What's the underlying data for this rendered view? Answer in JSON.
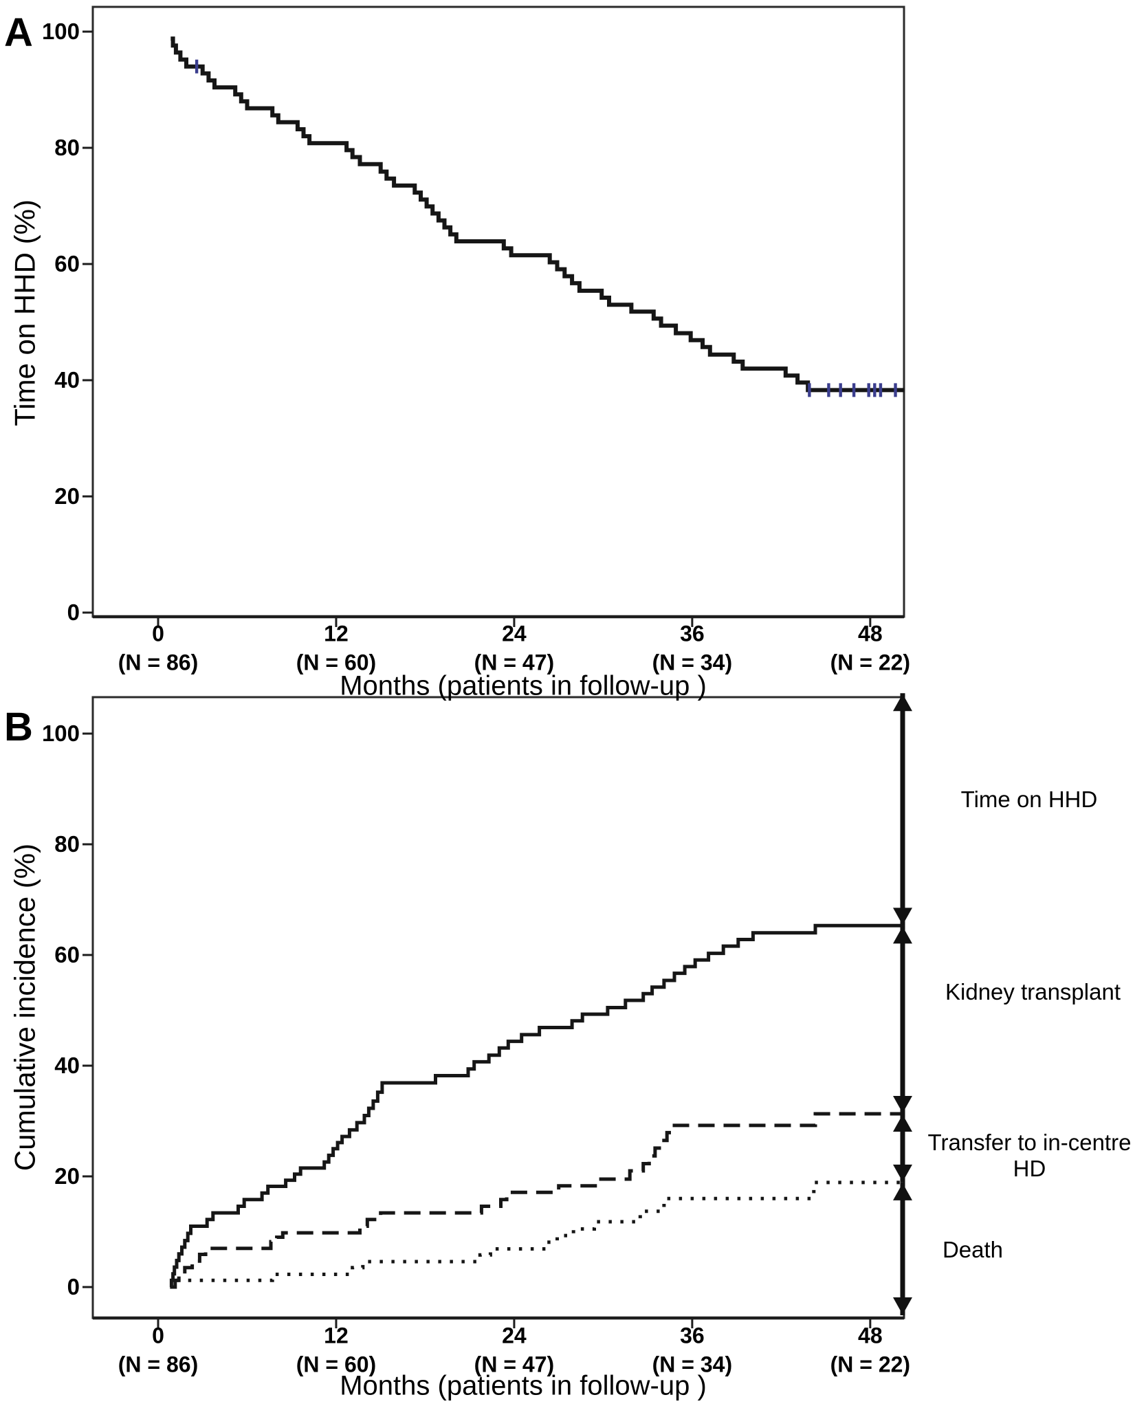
{
  "figure": {
    "background": "#ffffff",
    "line_color": "#161616",
    "frame_color": "#2b2b2b",
    "censor_color": "#3b3e8e",
    "panel_a_letter": "A",
    "panel_b_letter": "B"
  },
  "chart_data": [
    {
      "panel": "A",
      "type": "line",
      "step": true,
      "title": "",
      "xlabel": "Months (patients in follow-up )",
      "ylabel": "Time on HHD (%)",
      "xlim": [
        0,
        52
      ],
      "ylim": [
        0,
        100
      ],
      "grid": false,
      "yticks": [
        100,
        80,
        60,
        40,
        20,
        0
      ],
      "xticks": [
        {
          "month": "0",
          "n": "(N = 86)"
        },
        {
          "month": "12",
          "n": "(N = 60)"
        },
        {
          "month": "24",
          "n": "(N = 47)"
        },
        {
          "month": "36",
          "n": "(N = 34)"
        },
        {
          "month": "48",
          "n": "(N = 22)"
        }
      ],
      "series": [
        {
          "name": "Time on HHD",
          "style": "solid",
          "end_month": 50.3,
          "points": [
            [
              0.85,
              98.8
            ],
            [
              1.0,
              97.6
            ],
            [
              1.2,
              96.4
            ],
            [
              1.5,
              95.2
            ],
            [
              1.9,
              94.0
            ],
            [
              3.0,
              92.8
            ],
            [
              3.4,
              91.6
            ],
            [
              3.8,
              90.4
            ],
            [
              5.2,
              89.2
            ],
            [
              5.6,
              88.0
            ],
            [
              6.0,
              86.8
            ],
            [
              7.7,
              85.6
            ],
            [
              8.1,
              84.4
            ],
            [
              9.4,
              83.2
            ],
            [
              9.8,
              82.0
            ],
            [
              10.2,
              80.8
            ],
            [
              12.7,
              79.6
            ],
            [
              13.1,
              78.4
            ],
            [
              13.6,
              77.2
            ],
            [
              15.0,
              75.9
            ],
            [
              15.4,
              74.7
            ],
            [
              15.9,
              73.5
            ],
            [
              17.3,
              72.3
            ],
            [
              17.7,
              71.1
            ],
            [
              18.1,
              69.9
            ],
            [
              18.5,
              68.7
            ],
            [
              18.9,
              67.5
            ],
            [
              19.3,
              66.3
            ],
            [
              19.7,
              65.1
            ],
            [
              20.1,
              63.9
            ],
            [
              23.3,
              62.7
            ],
            [
              23.8,
              61.5
            ],
            [
              26.4,
              60.3
            ],
            [
              26.9,
              59.1
            ],
            [
              27.4,
              57.9
            ],
            [
              27.9,
              56.7
            ],
            [
              28.4,
              55.4
            ],
            [
              29.9,
              54.2
            ],
            [
              30.4,
              53.0
            ],
            [
              31.9,
              51.8
            ],
            [
              33.4,
              50.6
            ],
            [
              33.9,
              49.4
            ],
            [
              34.9,
              48.1
            ],
            [
              35.9,
              46.9
            ],
            [
              36.7,
              45.7
            ],
            [
              37.2,
              44.4
            ],
            [
              38.8,
              43.2
            ],
            [
              39.4,
              42.0
            ],
            [
              42.3,
              40.8
            ],
            [
              43.1,
              39.6
            ],
            [
              43.8,
              38.3
            ]
          ]
        }
      ],
      "censors": {
        "color": "#3b3e8e",
        "points": [
          [
            2.6,
            94.0
          ],
          [
            43.9,
            38.3
          ],
          [
            45.2,
            38.3
          ],
          [
            46.0,
            38.3
          ],
          [
            46.9,
            38.3
          ],
          [
            47.9,
            38.3
          ],
          [
            48.3,
            38.3
          ],
          [
            48.7,
            38.3
          ],
          [
            49.7,
            38.3
          ]
        ]
      }
    },
    {
      "panel": "B",
      "type": "line",
      "step": true,
      "title": "",
      "xlabel": "Months (patients in follow-up )",
      "ylabel": "Cumulative incidence (%)",
      "xlim": [
        0,
        52
      ],
      "ylim": [
        0,
        100
      ],
      "grid": false,
      "yticks": [
        100,
        80,
        60,
        40,
        20,
        0
      ],
      "xticks": [
        {
          "month": "0",
          "n": "(N = 86)"
        },
        {
          "month": "12",
          "n": "(N = 60)"
        },
        {
          "month": "24",
          "n": "(N = 47)"
        },
        {
          "month": "36",
          "n": "(N = 34)"
        },
        {
          "month": "48",
          "n": "(N = 22)"
        }
      ],
      "series": [
        {
          "name": "Kidney transplant",
          "style": "solid",
          "end_month": 50.2,
          "points": [
            [
              0.8,
              0
            ],
            [
              0.9,
              1.2
            ],
            [
              1.0,
              2.4
            ],
            [
              1.1,
              3.6
            ],
            [
              1.25,
              4.8
            ],
            [
              1.4,
              6.0
            ],
            [
              1.6,
              7.2
            ],
            [
              1.8,
              8.4
            ],
            [
              2.0,
              9.7
            ],
            [
              2.2,
              11.0
            ],
            [
              3.3,
              12.2
            ],
            [
              3.7,
              13.4
            ],
            [
              5.4,
              14.6
            ],
            [
              5.8,
              15.8
            ],
            [
              7.0,
              17.0
            ],
            [
              7.4,
              18.2
            ],
            [
              8.6,
              19.3
            ],
            [
              9.2,
              20.4
            ],
            [
              9.6,
              21.5
            ],
            [
              11.2,
              22.6
            ],
            [
              11.5,
              23.8
            ],
            [
              11.8,
              25.0
            ],
            [
              12.1,
              26.1
            ],
            [
              12.4,
              27.2
            ],
            [
              12.9,
              28.4
            ],
            [
              13.4,
              29.7
            ],
            [
              13.9,
              31.0
            ],
            [
              14.2,
              32.3
            ],
            [
              14.5,
              33.6
            ],
            [
              14.8,
              35.2
            ],
            [
              15.1,
              36.9
            ],
            [
              18.7,
              38.2
            ],
            [
              20.9,
              39.4
            ],
            [
              21.3,
              40.7
            ],
            [
              22.3,
              41.9
            ],
            [
              23.0,
              43.2
            ],
            [
              23.6,
              44.4
            ],
            [
              24.5,
              45.6
            ],
            [
              25.7,
              46.9
            ],
            [
              27.9,
              48.1
            ],
            [
              28.6,
              49.3
            ],
            [
              30.3,
              50.5
            ],
            [
              31.5,
              51.8
            ],
            [
              32.7,
              53.0
            ],
            [
              33.3,
              54.2
            ],
            [
              34.1,
              55.4
            ],
            [
              34.8,
              56.7
            ],
            [
              35.5,
              57.9
            ],
            [
              36.2,
              59.1
            ],
            [
              37.1,
              60.3
            ],
            [
              38.1,
              61.6
            ],
            [
              39.1,
              62.8
            ],
            [
              40.1,
              64.0
            ],
            [
              44.3,
              65.3
            ]
          ]
        },
        {
          "name": "Transfer to in-centre HD",
          "style": "dashed",
          "end_month": 50.2,
          "points": [
            [
              1.0,
              0
            ],
            [
              1.15,
              1.2
            ],
            [
              1.4,
              2.4
            ],
            [
              1.8,
              3.5
            ],
            [
              2.3,
              4.7
            ],
            [
              2.8,
              5.9
            ],
            [
              3.2,
              7.0
            ],
            [
              7.6,
              8.2
            ],
            [
              8.0,
              9.0
            ],
            [
              8.4,
              9.8
            ],
            [
              13.6,
              11.0
            ],
            [
              14.1,
              12.2
            ],
            [
              15.0,
              13.4
            ],
            [
              21.8,
              14.6
            ],
            [
              23.1,
              15.8
            ],
            [
              23.5,
              17.1
            ],
            [
              27.0,
              18.3
            ],
            [
              29.7,
              19.5
            ],
            [
              31.8,
              21.0
            ],
            [
              32.7,
              22.3
            ],
            [
              33.1,
              23.7
            ],
            [
              33.5,
              25.1
            ],
            [
              33.9,
              26.5
            ],
            [
              34.3,
              27.9
            ],
            [
              34.8,
              29.2
            ],
            [
              44.3,
              31.3
            ]
          ]
        },
        {
          "name": "Death",
          "style": "dotted",
          "end_month": 50.2,
          "points": [
            [
              0.9,
              0
            ],
            [
              1.1,
              1.2
            ],
            [
              7.7,
              2.3
            ],
            [
              13.1,
              3.5
            ],
            [
              13.8,
              4.6
            ],
            [
              21.7,
              5.8
            ],
            [
              22.4,
              6.9
            ],
            [
              26.2,
              8.1
            ],
            [
              26.9,
              9.3
            ],
            [
              28.0,
              10.5
            ],
            [
              29.4,
              11.8
            ],
            [
              32.5,
              13.7
            ],
            [
              34.1,
              16.0
            ],
            [
              44.2,
              18.9
            ]
          ]
        }
      ],
      "annotations": [
        {
          "label": "Time on HHD",
          "from_pct": 107.3,
          "to_pct": 65.3,
          "label_y_pct": 88.1
        },
        {
          "label": "Kidney transplant",
          "from_pct": 65.3,
          "to_pct": 31.3,
          "label_y_pct": 53.3
        },
        {
          "label": "Transfer to in-centre\nHD",
          "from_pct": 31.3,
          "to_pct": 18.9,
          "label_y_pct": 23.7
        },
        {
          "label": "Death",
          "from_pct": 18.9,
          "to_pct": -5.1,
          "label_y_pct": 6.7
        }
      ]
    }
  ]
}
